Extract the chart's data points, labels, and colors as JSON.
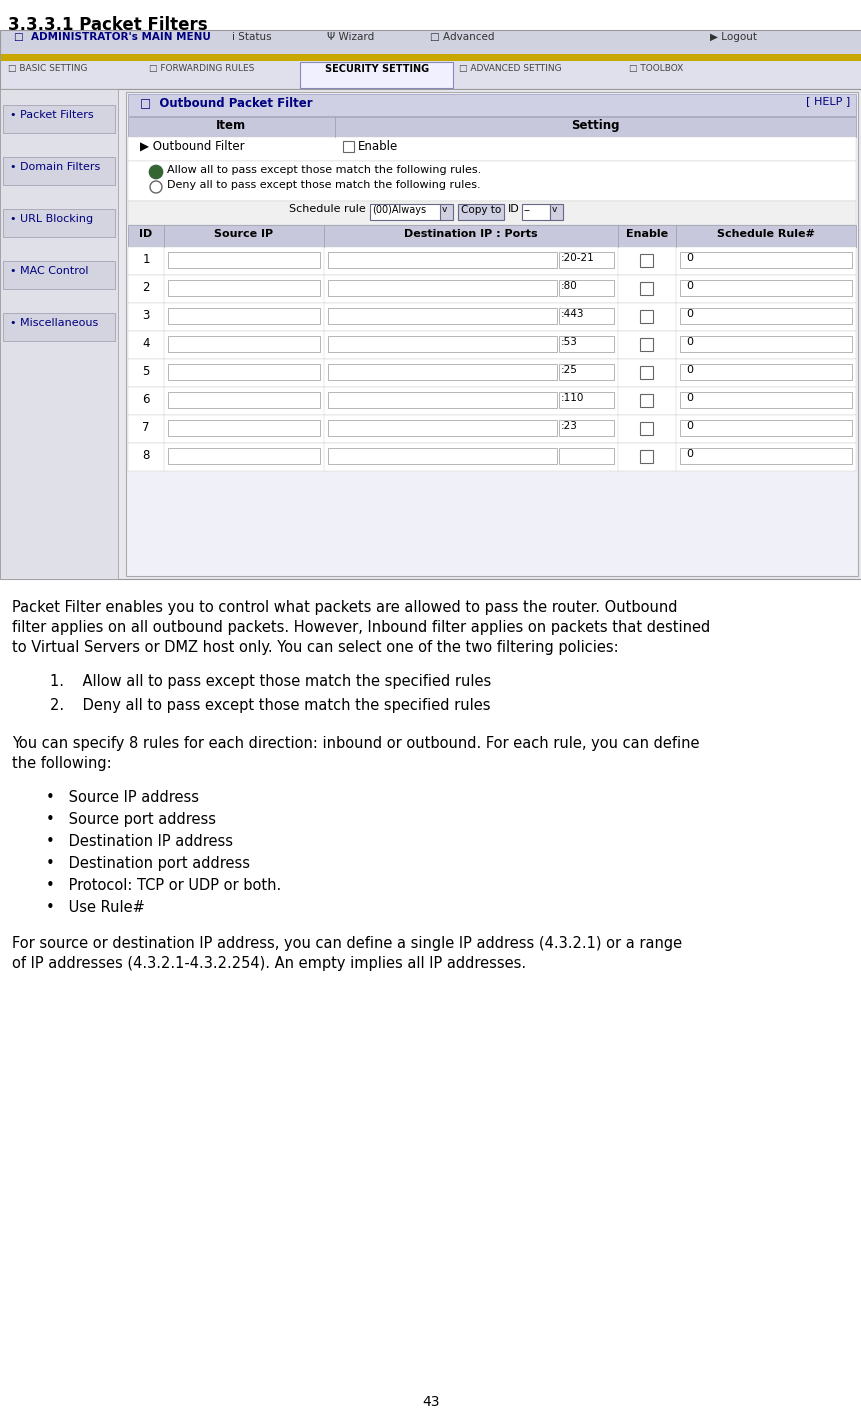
{
  "title": "3.3.3.1 Packet Filters",
  "page_number": "43",
  "bg_color": "#ffffff",
  "nav_top_bg": "#d0d0e0",
  "nav_yellow_bg": "#d4a800",
  "nav_bottom_bg": "#e8e8f0",
  "top_items": [
    "ADMINISTRATOR's MAIN MENU",
    "Status",
    "Wizard",
    "Advanced",
    "Logout"
  ],
  "bottom_items": [
    "BASIC SETTING",
    "FORWARDING RULES",
    "SECURITY SETTING",
    "ADVANCED SETTING",
    "TOOLBOX"
  ],
  "left_menu_bg": "#d8d8e0",
  "left_menu_items": [
    "Packet Filters",
    "Domain Filters",
    "URL Blocking",
    "MAC Control",
    "Miscellaneous"
  ],
  "panel_bg": "#f0f0f8",
  "panel_inner_bg": "#ffffff",
  "panel_header_bg": "#c8c8dc",
  "panel_title": "Outbound Packet Filter",
  "help_text": "[ HELP ]",
  "outbound_filter_label": "Outbound Filter",
  "enable_text": "Enable",
  "radio1": "Allow all to pass except those match the following rules.",
  "radio2": "Deny all to pass except those match the following rules.",
  "schedule_label": "Schedule rule",
  "schedule_value": "(00)Always",
  "copy_to_label": "Copy to",
  "id_label": "ID",
  "id_value": "--",
  "filter_headers": [
    "ID",
    "Source IP",
    "Destination IP : Ports",
    "Enable",
    "Schedule Rule#"
  ],
  "filter_rows": [
    {
      "id": "1",
      "port": "20-21"
    },
    {
      "id": "2",
      "port": "80"
    },
    {
      "id": "3",
      "port": "443"
    },
    {
      "id": "4",
      "port": "53"
    },
    {
      "id": "5",
      "port": "25"
    },
    {
      "id": "6",
      "port": "110"
    },
    {
      "id": "7",
      "port": "23"
    },
    {
      "id": "8",
      "port": ""
    }
  ],
  "body_para1_lines": [
    "Packet Filter enables you to control what packets are allowed to pass the router. Outbound",
    "filter applies on all outbound packets. However, Inbound filter applies on packets that destined",
    "to Virtual Servers or DMZ host only. You can select one of the two filtering policies:"
  ],
  "numbered_items": [
    "Allow all to pass except those match the specified rules",
    "Deny all to pass except those match the specified rules"
  ],
  "body_para2_lines": [
    "You can specify 8 rules for each direction: inbound or outbound. For each rule, you can define",
    "the following:"
  ],
  "bullet_items": [
    "Source IP address",
    "Source port address",
    "Destination IP address",
    "Destination port address",
    "Protocol: TCP or UDP or both.",
    "Use Rule#"
  ],
  "body_para3_lines": [
    "For source or destination IP address, you can define a single IP address (4.3.2.1) or a range",
    "of IP addresses (4.3.2.1-4.3.2.254). An empty implies all IP addresses."
  ]
}
